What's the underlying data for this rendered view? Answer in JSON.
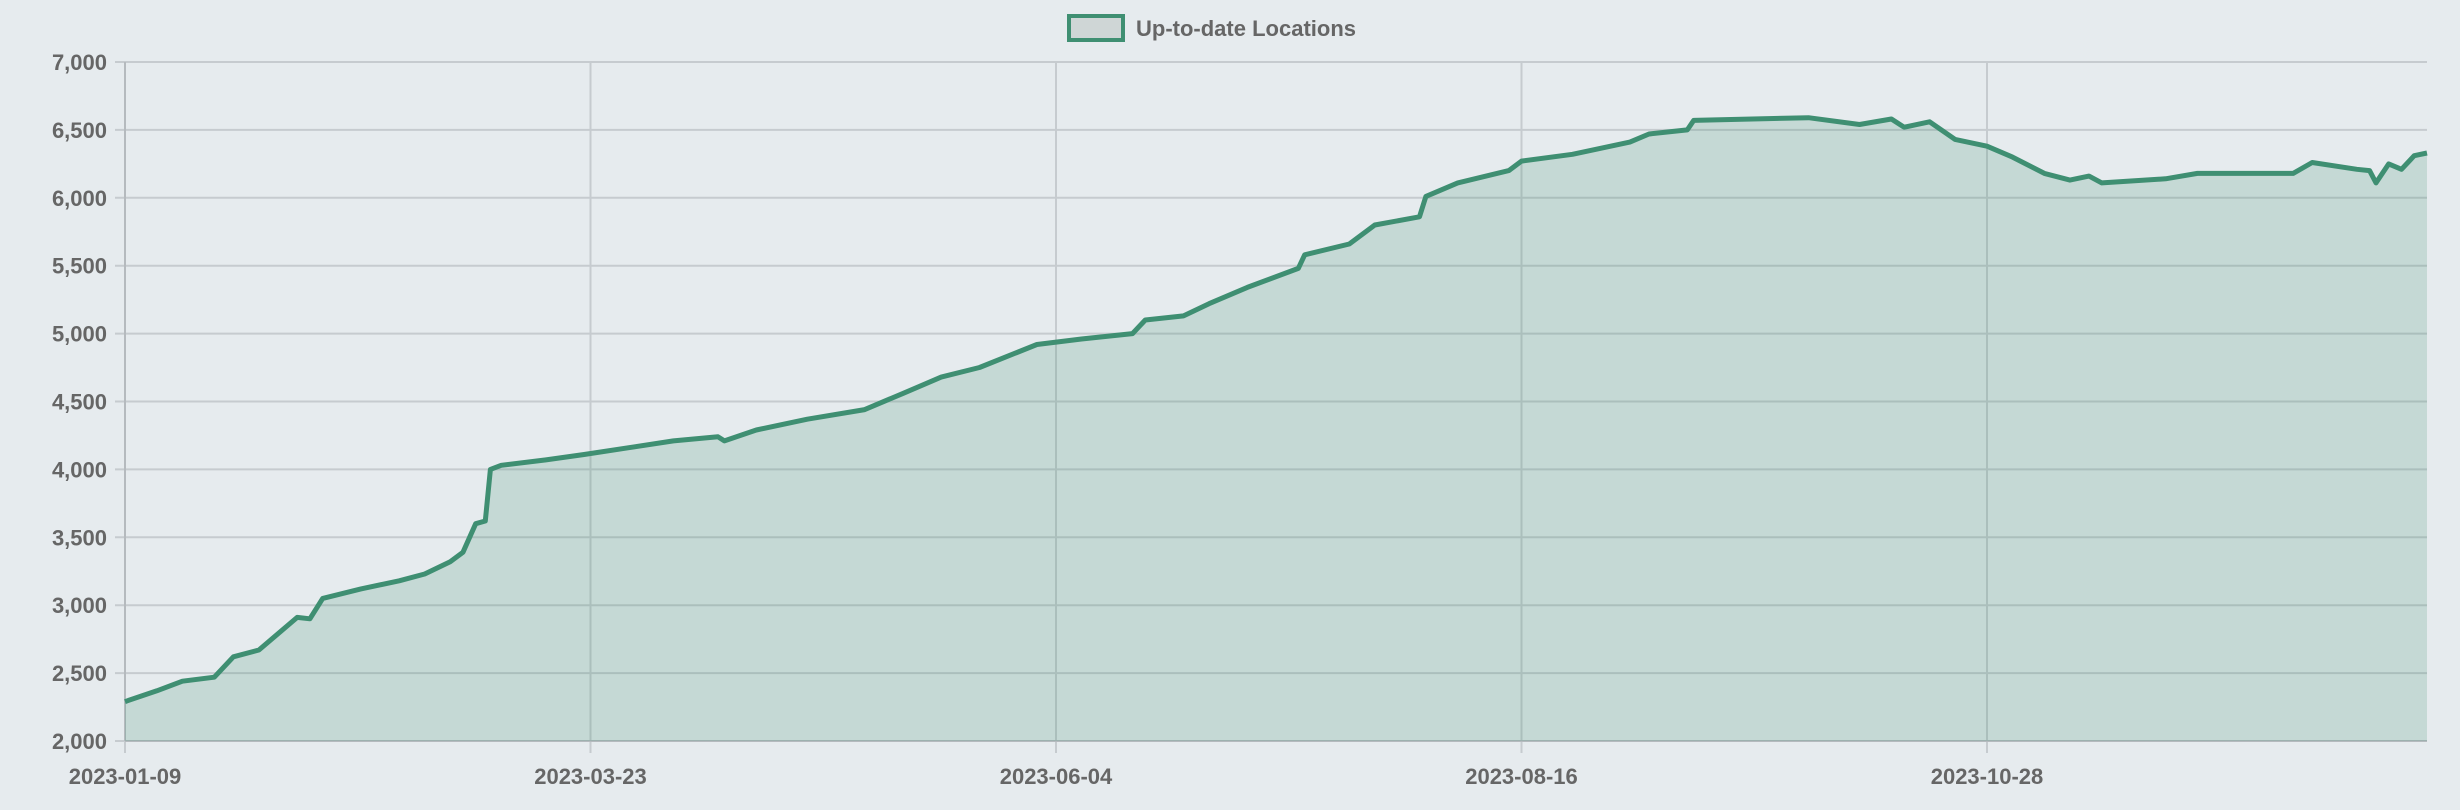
{
  "chart_data": {
    "type": "area",
    "title": "",
    "legend": {
      "label": "Up-to-date Locations",
      "position": "top-center"
    },
    "xlabel": "",
    "ylabel": "",
    "ylim": [
      2000,
      7000
    ],
    "y_ticks": [
      2000,
      2500,
      3000,
      3500,
      4000,
      4500,
      5000,
      5500,
      6000,
      6500,
      7000
    ],
    "y_tick_labels": [
      "2,000",
      "2,500",
      "3,000",
      "3,500",
      "4,000",
      "4,500",
      "5,000",
      "5,500",
      "6,000",
      "6,500",
      "7,000"
    ],
    "start_date": "2023-01-09",
    "x_range_days": [
      0,
      361
    ],
    "x_ticks_days": [
      0,
      73,
      146,
      219,
      292
    ],
    "x_tick_labels": [
      "2023-01-09",
      "2023-03-23",
      "2023-06-04",
      "2023-08-16",
      "2023-10-28"
    ],
    "grid": true,
    "series": [
      {
        "name": "Up-to-date Locations",
        "color": "#3f8f72",
        "points_days_since_start": [
          [
            0,
            2290
          ],
          [
            5,
            2370
          ],
          [
            9,
            2440
          ],
          [
            14,
            2470
          ],
          [
            17,
            2620
          ],
          [
            21,
            2670
          ],
          [
            27,
            2910
          ],
          [
            29,
            2900
          ],
          [
            31,
            3050
          ],
          [
            37,
            3120
          ],
          [
            43,
            3180
          ],
          [
            47,
            3230
          ],
          [
            51,
            3320
          ],
          [
            53,
            3390
          ],
          [
            55,
            3600
          ],
          [
            56.5,
            3620
          ],
          [
            57.3,
            4000
          ],
          [
            59,
            4030
          ],
          [
            66,
            4070
          ],
          [
            72,
            4110
          ],
          [
            79,
            4160
          ],
          [
            86,
            4210
          ],
          [
            93,
            4240
          ],
          [
            94,
            4210
          ],
          [
            99,
            4290
          ],
          [
            107,
            4370
          ],
          [
            116,
            4440
          ],
          [
            122,
            4560
          ],
          [
            128,
            4680
          ],
          [
            134,
            4750
          ],
          [
            143,
            4920
          ],
          [
            150,
            4960
          ],
          [
            158,
            5000
          ],
          [
            160,
            5100
          ],
          [
            166,
            5130
          ],
          [
            170,
            5220
          ],
          [
            176,
            5340
          ],
          [
            184,
            5480
          ],
          [
            185,
            5580
          ],
          [
            192,
            5660
          ],
          [
            196,
            5800
          ],
          [
            203,
            5860
          ],
          [
            204,
            6010
          ],
          [
            209,
            6110
          ],
          [
            217,
            6200
          ],
          [
            219,
            6270
          ],
          [
            227,
            6320
          ],
          [
            236,
            6410
          ],
          [
            239,
            6470
          ],
          [
            245,
            6500
          ],
          [
            246,
            6570
          ],
          [
            264,
            6590
          ],
          [
            272,
            6540
          ],
          [
            277,
            6580
          ],
          [
            279,
            6520
          ],
          [
            283,
            6560
          ],
          [
            287,
            6430
          ],
          [
            292,
            6380
          ],
          [
            296,
            6300
          ],
          [
            301,
            6180
          ],
          [
            305,
            6130
          ],
          [
            308,
            6160
          ],
          [
            310,
            6110
          ],
          [
            320,
            6140
          ],
          [
            325,
            6180
          ],
          [
            340,
            6180
          ],
          [
            343,
            6260
          ],
          [
            350,
            6210
          ],
          [
            352,
            6200
          ],
          [
            353,
            6110
          ],
          [
            355,
            6250
          ],
          [
            357,
            6210
          ],
          [
            359,
            6310
          ],
          [
            361,
            6330
          ]
        ]
      }
    ]
  }
}
